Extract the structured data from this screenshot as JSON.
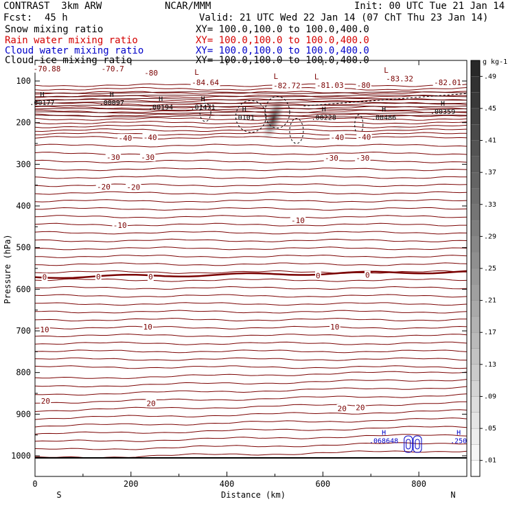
{
  "header": {
    "model": "CONTRAST  3km ARW",
    "center": "NCAR/MMM",
    "init": "Init: 00 UTC Tue 21 Jan 14",
    "fcst_label": "Fcst:",
    "fcst_value": "45 h",
    "valid": "Valid: 21 UTC Wed 22 Jan 14 (07 ChT Thu 23 Jan 14)"
  },
  "fields": [
    {
      "name": "Snow mixing ratio",
      "xy": "XY= 100.0,100.0 to 100.0,400.0",
      "color": "#000000"
    },
    {
      "name": "Rain water mixing ratio",
      "xy": "XY= 100.0,100.0 to 100.0,400.0",
      "color": "#d40000"
    },
    {
      "name": "Cloud water mixing ratio",
      "xy": "XY= 100.0,100.0 to 100.0,400.0",
      "color": "#0000c8"
    },
    {
      "name": "Cloud ice mixing ratio",
      "xy": "XY= 100.0,100.0 to 100.0,400.0",
      "color": "#000000"
    }
  ],
  "chart_data": {
    "type": "cross-section",
    "xlabel": "Distance (km)",
    "ylabel": "Pressure (hPa)",
    "xlim": [
      0,
      900
    ],
    "ylim": [
      1040,
      50
    ],
    "x_ticks": [
      0,
      200,
      400,
      600,
      800
    ],
    "x_tick_labels": [
      "0",
      "200",
      "400",
      "600",
      "800"
    ],
    "y_ticks": [
      100,
      200,
      300,
      400,
      500,
      600,
      700,
      800,
      900,
      1000
    ],
    "y_tick_labels": [
      "100",
      "200",
      "300",
      "400",
      "500",
      "600",
      "700",
      "800",
      "900",
      "1000"
    ],
    "endpoints": {
      "left": "S",
      "right": "N"
    },
    "temperature_contours": {
      "units": "C",
      "color": "#7a0000",
      "labels": [
        {
          "text": "-70.88",
          "x": 25,
          "p": 70
        },
        {
          "text": "-70.7",
          "x": 162,
          "p": 70
        },
        {
          "text": "-80",
          "x": 242,
          "p": 80
        },
        {
          "text": "-84.64",
          "x": 355,
          "p": 103
        },
        {
          "text": "-82.72",
          "x": 525,
          "p": 111
        },
        {
          "text": "-81.03",
          "x": 615,
          "p": 110
        },
        {
          "text": "-80",
          "x": 685,
          "p": 110
        },
        {
          "text": "-83.32",
          "x": 760,
          "p": 94
        },
        {
          "text": "-82.01",
          "x": 860,
          "p": 103
        },
        {
          "text": "-40",
          "x": 188,
          "p": 237
        },
        {
          "text": "-40",
          "x": 240,
          "p": 235
        },
        {
          "text": "-40",
          "x": 630,
          "p": 235
        },
        {
          "text": "-40",
          "x": 686,
          "p": 234
        },
        {
          "text": "-30",
          "x": 163,
          "p": 283
        },
        {
          "text": "-30",
          "x": 235,
          "p": 283
        },
        {
          "text": "-30",
          "x": 618,
          "p": 285
        },
        {
          "text": "-30",
          "x": 683,
          "p": 285
        },
        {
          "text": "-20",
          "x": 143,
          "p": 354
        },
        {
          "text": "-20",
          "x": 205,
          "p": 355
        },
        {
          "text": "-10",
          "x": 177,
          "p": 446
        },
        {
          "text": "-10",
          "x": 548,
          "p": 435
        },
        {
          "text": "0",
          "x": 20,
          "p": 571
        },
        {
          "text": "0",
          "x": 132,
          "p": 570
        },
        {
          "text": "0",
          "x": 241,
          "p": 570
        },
        {
          "text": "0",
          "x": 590,
          "p": 567
        },
        {
          "text": "0",
          "x": 693,
          "p": 566
        },
        {
          "text": "10",
          "x": 20,
          "p": 697
        },
        {
          "text": "10",
          "x": 235,
          "p": 690
        },
        {
          "text": "10",
          "x": 625,
          "p": 690
        },
        {
          "text": "20",
          "x": 22,
          "p": 868
        },
        {
          "text": "20",
          "x": 242,
          "p": 874
        },
        {
          "text": "20",
          "x": 640,
          "p": 886
        },
        {
          "text": "20",
          "x": 678,
          "p": 884
        }
      ]
    },
    "highs_lows": [
      {
        "type": "H",
        "value": ".00177",
        "x": 15,
        "p": 154,
        "color": "#000000"
      },
      {
        "type": "H",
        "value": ".00097",
        "x": 160,
        "p": 154,
        "color": "#000000"
      },
      {
        "type": "H",
        "value": ".00194",
        "x": 262,
        "p": 165,
        "color": "#000000"
      },
      {
        "type": "H",
        "value": ".01471",
        "x": 350,
        "p": 165,
        "color": "#000000"
      },
      {
        "type": "H",
        "value": ".0101",
        "x": 436,
        "p": 190,
        "color": "#000000"
      },
      {
        "type": "H",
        "value": ".00228",
        "x": 602,
        "p": 190,
        "color": "#000000"
      },
      {
        "type": "H",
        "value": ".00486",
        "x": 727,
        "p": 190,
        "color": "#000000"
      },
      {
        "type": "H",
        "value": ".00359",
        "x": 850,
        "p": 176,
        "color": "#000000"
      },
      {
        "type": "H",
        "value": ".068648",
        "x": 727,
        "p": 966,
        "color": "#0000c8"
      },
      {
        "type": "H",
        "value": ".250",
        "x": 883,
        "p": 966,
        "color": "#0000c8"
      }
    ],
    "low_markers": [
      {
        "text": "L",
        "x": 337,
        "p": 85
      },
      {
        "text": "L",
        "x": 502,
        "p": 95
      },
      {
        "text": "L",
        "x": 587,
        "p": 96
      },
      {
        "text": "L",
        "x": 732,
        "p": 80
      }
    ],
    "shading": {
      "field": "snow mixing ratio",
      "max_location": {
        "x": 497,
        "p": 190
      },
      "max_value": 0.49
    },
    "colorbar": {
      "units": "g kg-1",
      "levels": [
        ".01",
        ".05",
        ".09",
        ".13",
        ".17",
        ".21",
        ".25",
        ".29",
        ".33",
        ".37",
        ".41",
        ".45",
        ".49"
      ]
    }
  }
}
